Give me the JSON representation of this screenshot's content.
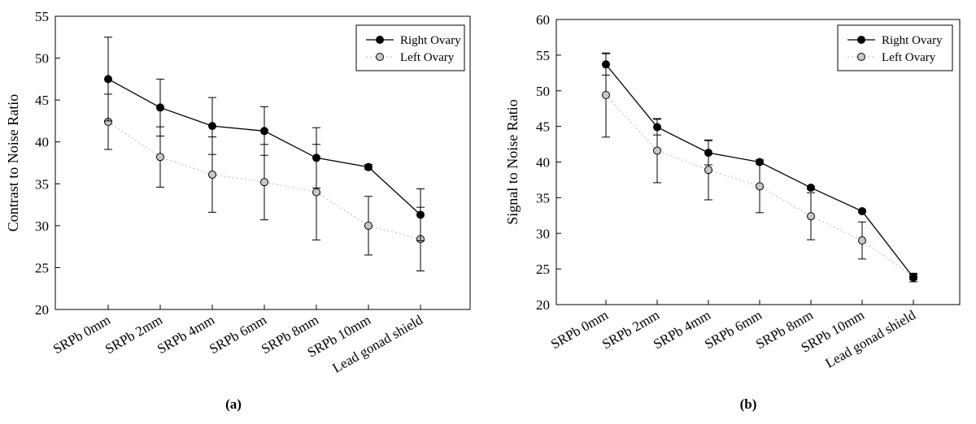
{
  "chart_data": [
    {
      "type": "line",
      "panel_label": "(a)",
      "ylabel": "Contrast to Noise Ratio",
      "xlabel": "",
      "categories": [
        "SRPb 0mm",
        "SRPb 2mm",
        "SRPb 4mm",
        "SRPb 6mm",
        "SRPb 8mm",
        "SRPb 10mm",
        "Lead gonad shield"
      ],
      "ylim": [
        20,
        55
      ],
      "yticks": [
        20,
        25,
        30,
        35,
        40,
        45,
        50,
        55
      ],
      "grid": false,
      "legend_position": "top-right",
      "series": [
        {
          "name": "Right Ovary",
          "color": "#000000",
          "marker": "filled-circle",
          "line_style": "solid",
          "values": [
            47.5,
            44.1,
            41.9,
            41.3,
            38.1,
            37.0,
            31.3
          ],
          "error": [
            5.0,
            3.4,
            3.4,
            2.9,
            3.6,
            0.3,
            3.1
          ]
        },
        {
          "name": "Left Ovary",
          "color": "#b0b0b0",
          "marker": "gray-circle",
          "line_style": "dotted",
          "values": [
            42.4,
            38.2,
            36.1,
            35.2,
            34.0,
            30.0,
            28.4
          ],
          "error": [
            3.3,
            3.6,
            4.5,
            4.5,
            5.7,
            3.5,
            3.8
          ]
        }
      ]
    },
    {
      "type": "line",
      "panel_label": "(b)",
      "ylabel": "Signal to Noise Ratio",
      "xlabel": "",
      "categories": [
        "SRPb 0mm",
        "SRPb 2mm",
        "SRPb 4mm",
        "SRPb 6mm",
        "SRPb 8mm",
        "SRPb 10mm",
        "Lead gonad shield"
      ],
      "ylim": [
        20,
        60
      ],
      "yticks": [
        20,
        25,
        30,
        35,
        40,
        45,
        50,
        55,
        60
      ],
      "grid": false,
      "legend_position": "top-right",
      "series": [
        {
          "name": "Right Ovary",
          "color": "#000000",
          "marker": "filled-circle",
          "line_style": "solid",
          "values": [
            53.7,
            44.9,
            41.3,
            40.0,
            36.4,
            33.1,
            23.8
          ],
          "error": [
            1.5,
            1.1,
            1.7,
            0.3,
            0.2,
            0.2,
            0.6
          ]
        },
        {
          "name": "Left Ovary",
          "color": "#b0b0b0",
          "marker": "gray-circle",
          "line_style": "dotted",
          "values": [
            49.4,
            41.6,
            38.9,
            36.6,
            32.4,
            29.0,
            23.9
          ],
          "error": [
            5.9,
            4.5,
            4.2,
            3.7,
            3.3,
            2.6,
            0.4
          ]
        }
      ]
    }
  ]
}
